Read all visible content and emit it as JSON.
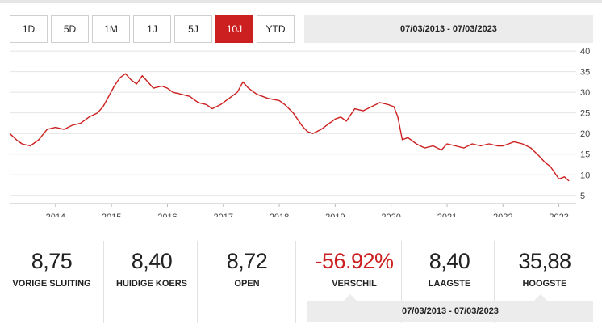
{
  "ranges": {
    "items": [
      "1D",
      "5D",
      "1M",
      "1J",
      "5J",
      "10J",
      "YTD"
    ],
    "active": "10J"
  },
  "date_range": "07/03/2013 - 07/03/2023",
  "colors": {
    "accent": "#cc1f1f",
    "grid": "#e4e4e4",
    "panel": "#ececec"
  },
  "chart_data": {
    "type": "line",
    "title": "",
    "xlabel": "",
    "ylabel": "",
    "x_ticks": [
      "2014",
      "2015",
      "2016",
      "2017",
      "2018",
      "2019",
      "2020",
      "2021",
      "2022",
      "2023"
    ],
    "y_ticks": [
      5,
      10,
      15,
      20,
      25,
      30,
      35,
      40
    ],
    "ylim": [
      3,
      41
    ],
    "xlim": [
      2013.18,
      2023.28
    ],
    "y_axis_position": "right",
    "grid": "horizontal",
    "legend": "none",
    "series": [
      {
        "color": "#cc1f1f",
        "x": [
          2013.18,
          2013.3,
          2013.4,
          2013.55,
          2013.7,
          2013.85,
          2014.0,
          2014.15,
          2014.3,
          2014.45,
          2014.6,
          2014.75,
          2014.85,
          2014.95,
          2015.05,
          2015.15,
          2015.25,
          2015.35,
          2015.45,
          2015.55,
          2015.65,
          2015.75,
          2015.9,
          2016.0,
          2016.1,
          2016.25,
          2016.4,
          2016.55,
          2016.7,
          2016.8,
          2016.95,
          2017.05,
          2017.15,
          2017.25,
          2017.35,
          2017.45,
          2017.6,
          2017.8,
          2018.0,
          2018.1,
          2018.25,
          2018.4,
          2018.5,
          2018.6,
          2018.75,
          2018.9,
          2019.0,
          2019.1,
          2019.2,
          2019.35,
          2019.5,
          2019.65,
          2019.8,
          2019.95,
          2020.05,
          2020.12,
          2020.2,
          2020.3,
          2020.45,
          2020.6,
          2020.75,
          2020.9,
          2021.0,
          2021.15,
          2021.3,
          2021.45,
          2021.6,
          2021.75,
          2021.9,
          2022.0,
          2022.1,
          2022.2,
          2022.35,
          2022.5,
          2022.65,
          2022.75,
          2022.85,
          2023.0,
          2023.1,
          2023.18
        ],
        "y": [
          20.0,
          18.5,
          17.5,
          17.0,
          18.5,
          21.0,
          21.5,
          21.0,
          22.0,
          22.5,
          24.0,
          25.0,
          26.5,
          29.0,
          31.5,
          33.5,
          34.5,
          33.0,
          32.0,
          34.0,
          32.5,
          31.0,
          31.5,
          31.0,
          30.0,
          29.5,
          29.0,
          27.5,
          27.0,
          26.0,
          27.0,
          28.0,
          29.0,
          30.0,
          32.5,
          31.0,
          29.5,
          28.5,
          28.0,
          27.0,
          25.0,
          22.0,
          20.5,
          20.0,
          21.0,
          22.5,
          23.5,
          24.0,
          23.0,
          26.0,
          25.5,
          26.5,
          27.5,
          27.0,
          26.5,
          24.0,
          18.5,
          19.0,
          17.5,
          16.5,
          17.0,
          16.0,
          17.5,
          17.0,
          16.5,
          17.5,
          17.0,
          17.5,
          17.0,
          17.0,
          17.5,
          18.0,
          17.5,
          16.5,
          14.5,
          13.0,
          12.0,
          9.0,
          9.5,
          8.5
        ]
      }
    ]
  },
  "stats": [
    {
      "value": "8,75",
      "label": "VORIGE SLUITING",
      "negative": false
    },
    {
      "value": "8,40",
      "label": "HUIDIGE KOERS",
      "negative": false
    },
    {
      "value": "8,72",
      "label": "OPEN",
      "negative": false
    },
    {
      "value": "-56.92%",
      "label": "VERSCHIL",
      "negative": true
    },
    {
      "value": "8,40",
      "label": "LAAGSTE",
      "negative": false
    },
    {
      "value": "35,88",
      "label": "HOOGSTE",
      "negative": false
    }
  ]
}
